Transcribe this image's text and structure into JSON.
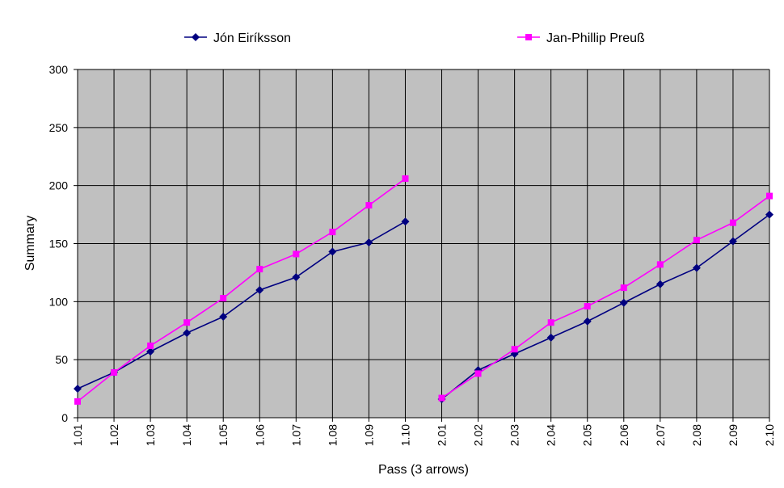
{
  "chart_data": {
    "type": "line",
    "xlabel": "Pass (3 arrows)",
    "ylabel": "Summary",
    "ylim": [
      0,
      300
    ],
    "yticks": [
      0,
      50,
      100,
      150,
      200,
      250,
      300
    ],
    "grid": true,
    "legend_position": "top",
    "categories": [
      "1.01",
      "1.02",
      "1.03",
      "1.04",
      "1.05",
      "1.06",
      "1.07",
      "1.08",
      "1.09",
      "1.10",
      "2.01",
      "2.02",
      "2.03",
      "2.04",
      "2.05",
      "2.06",
      "2.07",
      "2.08",
      "2.09",
      "2.10"
    ],
    "series": [
      {
        "name": "Jón Eiríksson",
        "color": "#000080",
        "marker": "diamond",
        "values": [
          25,
          39,
          57,
          73,
          87,
          110,
          121,
          143,
          151,
          169,
          16,
          41,
          55,
          69,
          83,
          99,
          115,
          129,
          152,
          175
        ]
      },
      {
        "name": "Jan-Phillip Preuß",
        "color": "#FF00FF",
        "marker": "square",
        "values": [
          14,
          39,
          62,
          82,
          103,
          128,
          141,
          160,
          183,
          206,
          17,
          38,
          59,
          82,
          96,
          112,
          132,
          153,
          168,
          191
        ]
      }
    ],
    "colors": {
      "plot_background": "#C0C0C0",
      "gridline": "#000000"
    }
  }
}
